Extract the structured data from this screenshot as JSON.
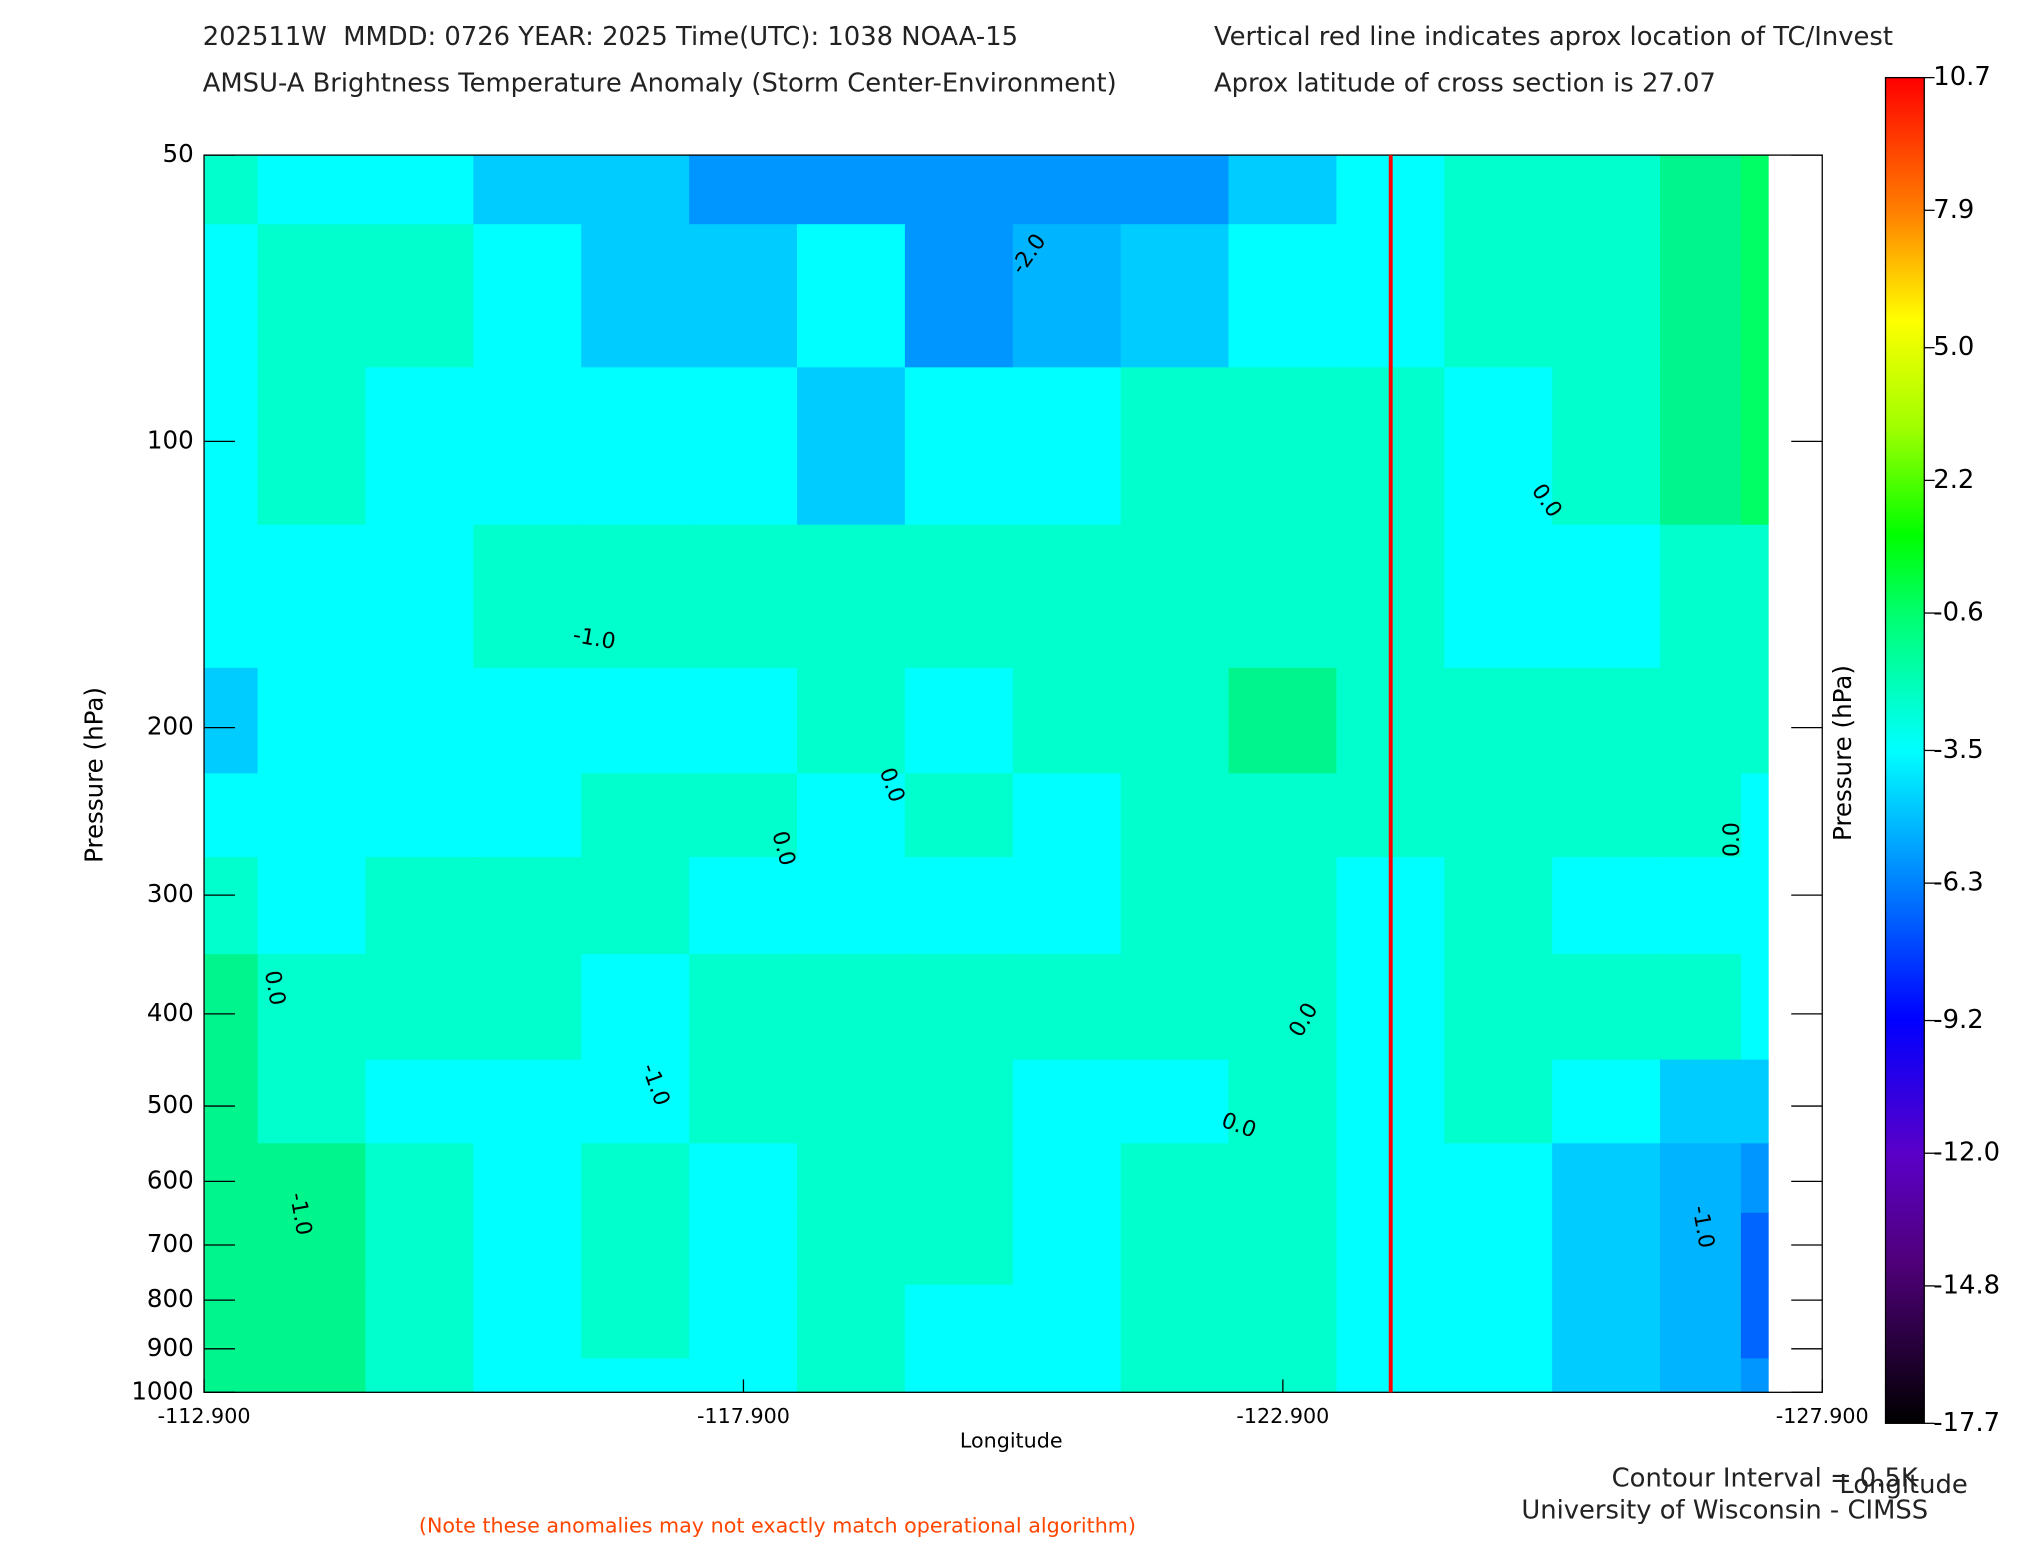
{
  "chart_data": {
    "type": "contour",
    "title": "202511W  MMDD: 0726 YEAR: 2025 Time(UTC): 1038 NOAA-15",
    "subtitle": "AMSU-A Brightness Temperature Anomaly (Storm Center-Environment)",
    "note_right_1": "Vertical red line indicates aprox location of TC/Invest",
    "note_right_2": "Aprox latitude of cross section is 27.07",
    "xlabel": "Longitude",
    "ylabel": "Pressure (hPa)",
    "y2label": "Pressure (hPa)",
    "xlim": [
      -112.9,
      -127.9
    ],
    "xticks": [
      {
        "value": -112.9,
        "label": "-112.900"
      },
      {
        "value": -117.9,
        "label": "-117.900"
      },
      {
        "value": -122.9,
        "label": "-122.900"
      },
      {
        "value": -127.9,
        "label": "-127.900"
      }
    ],
    "ylim": [
      50,
      1000
    ],
    "log_y": true,
    "yticks": [
      50,
      100,
      200,
      300,
      400,
      500,
      600,
      700,
      800,
      900,
      1000
    ],
    "x": [
      -112.9,
      -113.9,
      -114.9,
      -115.9,
      -116.9,
      -117.9,
      -118.9,
      -119.9,
      -120.9,
      -121.9,
      -122.9,
      -123.9,
      -124.9,
      -125.9,
      -126.9,
      -127.4
    ],
    "y": [
      50,
      70,
      100,
      150,
      200,
      250,
      300,
      400,
      500,
      600,
      700,
      850,
      1000
    ],
    "z": [
      [
        0.2,
        -0.2,
        -0.3,
        -0.8,
        -0.9,
        -1.6,
        -1.6,
        -1.7,
        -1.7,
        -1.6,
        -0.8,
        -0.3,
        0.2,
        0.2,
        0.7,
        1.2
      ],
      [
        -0.2,
        0.2,
        0.1,
        -0.3,
        -0.8,
        -0.9,
        -0.4,
        -1.6,
        -1.2,
        -0.8,
        -0.4,
        -0.2,
        0.2,
        0.2,
        0.6,
        1.2
      ],
      [
        -0.2,
        0.2,
        -0.2,
        -0.3,
        -0.3,
        -0.3,
        -0.6,
        -0.3,
        -0.2,
        0.1,
        0.2,
        0.2,
        -0.1,
        0.2,
        0.6,
        1.1
      ],
      [
        -0.3,
        -0.2,
        -0.1,
        0.1,
        0.2,
        0.2,
        0.2,
        0.2,
        0.2,
        0.2,
        0.2,
        0.1,
        -0.2,
        -0.1,
        0.2,
        0.2
      ],
      [
        -0.6,
        -0.3,
        -0.2,
        -0.2,
        -0.2,
        -0.1,
        0.1,
        -0.2,
        0.1,
        0.2,
        0.6,
        0.2,
        0.2,
        0.2,
        0.2,
        0.2
      ],
      [
        -0.2,
        -0.2,
        -0.2,
        -0.1,
        0.1,
        0.1,
        -0.2,
        0.1,
        -0.2,
        0.2,
        0.3,
        0.2,
        0.1,
        0.2,
        0.2,
        -0.2
      ],
      [
        0.1,
        -0.2,
        0.1,
        0.2,
        0.2,
        -0.2,
        -0.2,
        -0.2,
        -0.2,
        0.2,
        0.2,
        -0.2,
        0.1,
        -0.2,
        -0.2,
        -0.2
      ],
      [
        0.6,
        0.1,
        0.2,
        0.2,
        -0.2,
        0.1,
        0.1,
        0.2,
        0.2,
        0.2,
        0.1,
        -0.2,
        0.1,
        0.1,
        0.1,
        -0.2
      ],
      [
        0.6,
        0.1,
        -0.1,
        -0.2,
        -0.3,
        0.1,
        0.2,
        0.2,
        -0.1,
        -0.2,
        0.1,
        -0.2,
        0.2,
        -0.4,
        -0.7,
        -0.8
      ],
      [
        0.6,
        0.8,
        0.1,
        -0.2,
        0.1,
        -0.2,
        0.2,
        0.2,
        -0.2,
        0.2,
        0.2,
        -0.2,
        -0.2,
        -0.7,
        -1.2,
        -1.7
      ],
      [
        0.6,
        0.8,
        0.2,
        -0.2,
        0.1,
        -0.2,
        0.2,
        0.1,
        -0.2,
        0.2,
        0.2,
        -0.2,
        -0.2,
        -0.7,
        -1.2,
        -2.2
      ],
      [
        0.6,
        0.6,
        0.2,
        -0.2,
        0.1,
        -0.2,
        0.2,
        -0.2,
        -0.2,
        0.2,
        0.2,
        -0.2,
        -0.3,
        -0.6,
        -1.2,
        -2.2
      ],
      [
        0.6,
        0.6,
        0.2,
        -0.2,
        -0.2,
        -0.2,
        0.2,
        -0.2,
        -0.2,
        0.2,
        0.2,
        -0.2,
        -0.3,
        -0.7,
        -1.2,
        -1.7
      ]
    ],
    "levels": [
      -2,
      -1.5,
      -1,
      -0.5,
      0,
      0.5,
      1,
      1.5
    ],
    "colors": [
      "#0064ff",
      "#0096ff",
      "#00b4ff",
      "#00ccff",
      "#00ffff",
      "#00ffcc",
      "#00f58c",
      "#00ff64",
      "#00ff32"
    ],
    "contour_labels": [
      "-2.0",
      "-1.0",
      "0.0",
      "0.0",
      "0.0",
      "0.0",
      "-1.0",
      "0.0",
      "0.0",
      "0.0",
      "-1.0",
      "-1.0"
    ],
    "tc_longitude": -123.9,
    "tc_line_color": "#ff0000",
    "colorbar": {
      "lim": [
        -17.7,
        10.7
      ],
      "ticks": [
        -17.7,
        -14.8,
        {
          "value": -12.0,
          "label": "-12.0"
        },
        -9.2,
        -6.3,
        -3.5,
        -0.6,
        2.2,
        {
          "value": 5.0,
          "label": "5.0"
        },
        7.9,
        10.7
      ],
      "xlabel": "Longitude"
    },
    "contour_interval": "Contour Interval = 0.5K",
    "credit": "University of Wisconsin - CIMSS",
    "footnote": "(Note these anomalies may not exactly match operational algorithm)"
  }
}
